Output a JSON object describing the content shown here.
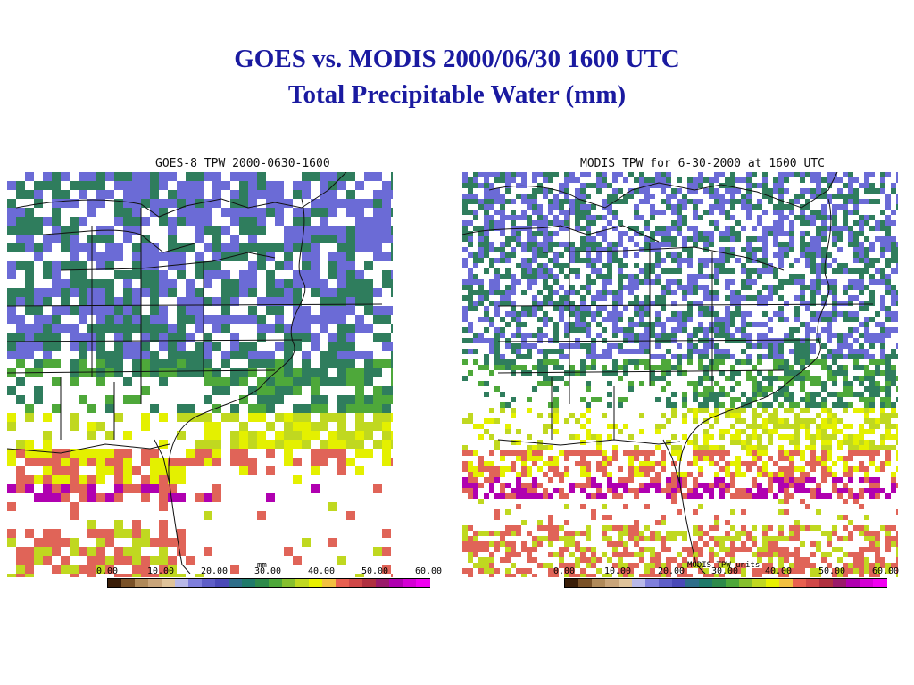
{
  "title_line1": "GOES vs. MODIS 2000/06/30 1600 UTC",
  "title_line2": "Total Precipitable Water (mm)",
  "left_panel": {
    "title": "GOES-8 TPW 2000-0630-1600",
    "units": "mm"
  },
  "right_panel": {
    "title": "MODIS TPW for 6-30-2000 at 1600 UTC",
    "units": "MODIS TPW units"
  },
  "colorbar": {
    "ticks": [
      "0.00",
      "10.00",
      "20.00",
      "30.00",
      "40.00",
      "50.00",
      "60.00"
    ],
    "min": 0,
    "max": 60,
    "colors": [
      "#3a1e08",
      "#7a5228",
      "#b08a5a",
      "#c9a57a",
      "#dfc39a",
      "#b8b8e8",
      "#7f7fdc",
      "#5f5fc8",
      "#4a4ab8",
      "#2e6e8a",
      "#1f7a6a",
      "#2d8a4a",
      "#4ea83a",
      "#86c02e",
      "#c0d820",
      "#e8f000",
      "#f2c040",
      "#e86050",
      "#d04848",
      "#b03040",
      "#9a1a6a",
      "#b000b0",
      "#d400d4",
      "#f000f0"
    ]
  },
  "colors": {
    "title": "#1a1aa0",
    "dry": "#6b6bd6",
    "moist": "#2f7d5d",
    "humid": "#e4f000",
    "very_humid": "#e06458",
    "saturated": "#b000b0"
  }
}
